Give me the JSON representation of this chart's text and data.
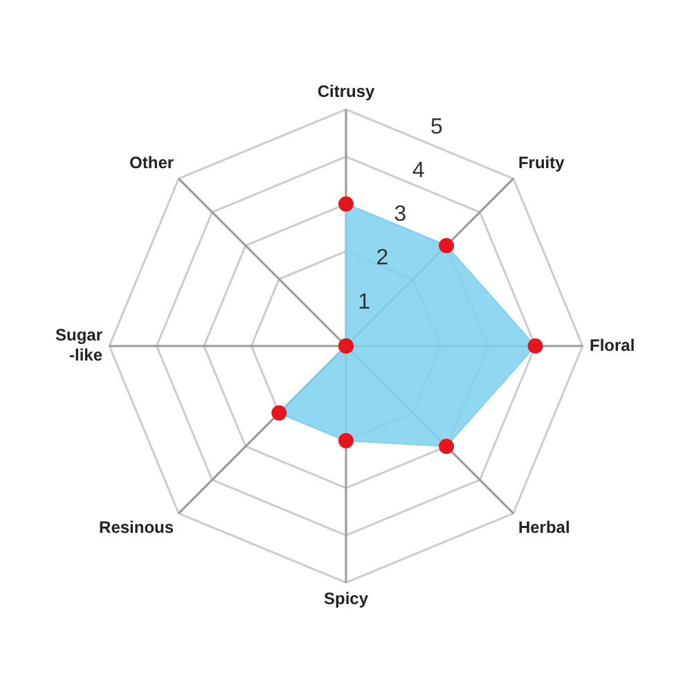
{
  "chart_data": {
    "type": "radar",
    "categories": [
      "Citrusy",
      "Fruity",
      "Floral",
      "Herbal",
      "Spicy",
      "Resinous",
      "Sugar\n-like",
      "Other"
    ],
    "series": [
      {
        "color": "#7fd2f0",
        "values": [
          3,
          3,
          4,
          3,
          2,
          2,
          0,
          0
        ]
      }
    ],
    "ylim": [
      0,
      5
    ],
    "yticks": [
      1,
      2,
      3,
      4,
      5
    ],
    "grid": true,
    "legend": false,
    "marker": "circle"
  }
}
